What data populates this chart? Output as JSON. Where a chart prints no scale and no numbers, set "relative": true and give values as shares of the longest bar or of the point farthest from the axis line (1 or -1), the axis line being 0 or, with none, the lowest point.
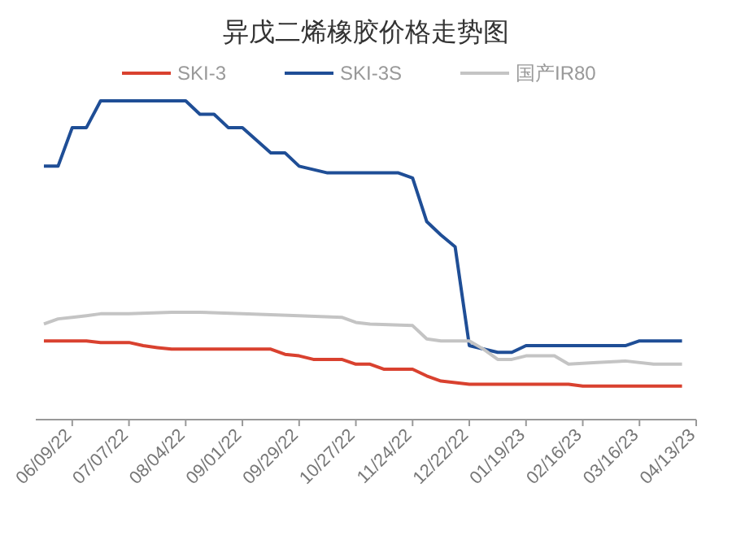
{
  "chart_data": {
    "type": "line",
    "title": "异戊二烯橡胶价格走势图",
    "relative": true,
    "legend": "top",
    "xlim": [
      "2022-05-22",
      "2023-04-13"
    ],
    "xticks": [
      {
        "value": "2022-06-09",
        "label": "06/09/22"
      },
      {
        "value": "2022-07-07",
        "label": "07/07/22"
      },
      {
        "value": "2022-08-04",
        "label": "08/04/22"
      },
      {
        "value": "2022-09-01",
        "label": "09/01/22"
      },
      {
        "value": "2022-09-29",
        "label": "09/29/22"
      },
      {
        "value": "2022-10-27",
        "label": "10/27/22"
      },
      {
        "value": "2022-11-24",
        "label": "11/24/22"
      },
      {
        "value": "2022-12-22",
        "label": "12/22/22"
      },
      {
        "value": "2023-01-19",
        "label": "01/19/23"
      },
      {
        "value": "2023-02-16",
        "label": "02/16/23"
      },
      {
        "value": "2023-03-16",
        "label": "03/16/23"
      },
      {
        "value": "2023-04-13",
        "label": "04/13/23"
      }
    ],
    "series": [
      {
        "name": "SKI-3",
        "color": "#d9412f",
        "x": [
          "2022-05-26",
          "2022-06-16",
          "2022-06-23",
          "2022-07-07",
          "2022-07-14",
          "2022-07-21",
          "2022-07-28",
          "2022-09-15",
          "2022-09-22",
          "2022-09-29",
          "2022-10-06",
          "2022-10-20",
          "2022-10-27",
          "2022-11-03",
          "2022-11-10",
          "2022-11-24",
          "2022-12-01",
          "2022-12-08",
          "2022-12-15",
          "2022-12-22",
          "2023-02-09",
          "2023-02-16",
          "2023-04-06"
        ],
        "values": [
          0.247,
          0.247,
          0.242,
          0.242,
          0.232,
          0.226,
          0.221,
          0.221,
          0.205,
          0.2,
          0.189,
          0.189,
          0.174,
          0.174,
          0.158,
          0.158,
          0.137,
          0.121,
          0.116,
          0.111,
          0.111,
          0.105,
          0.105
        ]
      },
      {
        "name": "SKI-3S",
        "color": "#1f4e96",
        "x": [
          "2022-05-26",
          "2022-06-02",
          "2022-06-09",
          "2022-06-16",
          "2022-06-23",
          "2022-08-04",
          "2022-08-11",
          "2022-08-18",
          "2022-08-25",
          "2022-09-01",
          "2022-09-15",
          "2022-09-22",
          "2022-09-29",
          "2022-10-13",
          "2022-11-17",
          "2022-11-24",
          "2022-12-01",
          "2022-12-08",
          "2022-12-15",
          "2022-12-22",
          "2023-01-05",
          "2023-01-12",
          "2023-01-19",
          "2023-03-09",
          "2023-03-16",
          "2023-04-06"
        ],
        "values": [
          0.795,
          0.795,
          0.916,
          0.916,
          1,
          1,
          0.958,
          0.958,
          0.916,
          0.916,
          0.837,
          0.837,
          0.795,
          0.774,
          0.774,
          0.758,
          0.621,
          0.579,
          0.542,
          0.232,
          0.211,
          0.211,
          0.232,
          0.232,
          0.247,
          0.247
        ]
      },
      {
        "name": "国产IR80",
        "color": "#c4c4c4",
        "x": [
          "2022-05-26",
          "2022-06-02",
          "2022-06-09",
          "2022-06-16",
          "2022-06-23",
          "2022-07-07",
          "2022-07-28",
          "2022-08-11",
          "2022-09-01",
          "2022-09-29",
          "2022-10-20",
          "2022-10-27",
          "2022-11-03",
          "2022-11-24",
          "2022-12-01",
          "2022-12-08",
          "2022-12-22",
          "2022-12-29",
          "2023-01-05",
          "2023-01-12",
          "2023-01-19",
          "2023-02-02",
          "2023-02-09",
          "2023-02-23",
          "2023-03-09",
          "2023-03-23",
          "2023-04-06"
        ],
        "values": [
          0.3,
          0.316,
          0.321,
          0.326,
          0.332,
          0.332,
          0.337,
          0.337,
          0.332,
          0.326,
          0.321,
          0.305,
          0.3,
          0.295,
          0.253,
          0.247,
          0.247,
          0.221,
          0.189,
          0.189,
          0.2,
          0.2,
          0.174,
          0.179,
          0.184,
          0.174,
          0.174
        ]
      }
    ]
  }
}
